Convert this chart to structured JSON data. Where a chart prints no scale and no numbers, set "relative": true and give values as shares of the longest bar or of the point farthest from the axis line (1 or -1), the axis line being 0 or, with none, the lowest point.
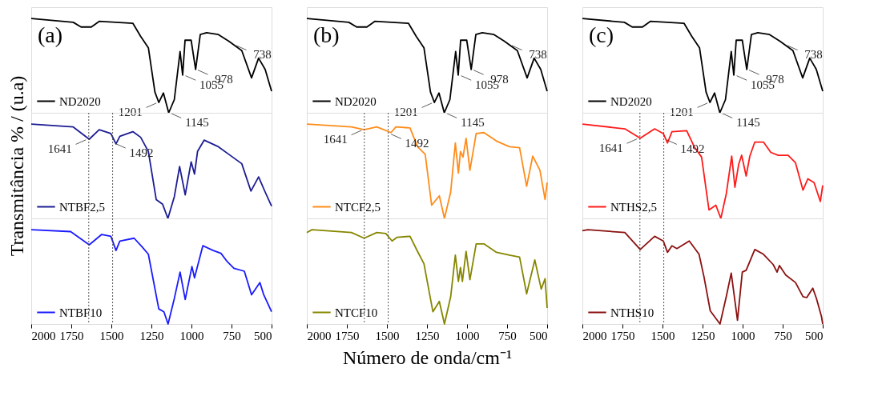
{
  "chart_data": [
    {
      "type": "line",
      "relative": true,
      "xlim": [
        2000,
        500
      ],
      "xticks": [
        2000,
        1750,
        1500,
        1250,
        1000,
        750,
        500
      ],
      "tick_labels": false,
      "legend": "bottom left",
      "line_style": "solid",
      "marker": "none",
      "grid": false,
      "series": [
        {
          "name": "ND2020",
          "color": "#000000",
          "x": [
            2000,
            1738,
            1689,
            1625,
            1576,
            1366,
            1317,
            1269,
            1228,
            1204,
            1175,
            1142,
            1107,
            1071,
            1055,
            1040,
            1002,
            974,
            945,
            905,
            832,
            767,
            686,
            625,
            581,
            540,
            500
          ],
          "values": [
            1.0,
            0.96,
            0.91,
            0.91,
            0.97,
            0.95,
            0.81,
            0.69,
            0.22,
            0.11,
            0.21,
            0,
            0.14,
            0.65,
            0.4,
            0.77,
            0.77,
            0.46,
            0.83,
            0.85,
            0.83,
            0.76,
            0.66,
            0.37,
            0.58,
            0.46,
            0.23
          ]
        }
      ],
      "annotations": [
        "(a)",
        {
          "text": "1201",
          "x": 1201,
          "y": 0.11
        },
        {
          "text": "1145",
          "x": 1145,
          "y": 0
        },
        {
          "text": "1055",
          "x": 1055,
          "y": 0.4
        },
        {
          "text": "978",
          "x": 978,
          "y": 0.46
        },
        {
          "text": "738",
          "x": 738,
          "y": 0.72
        }
      ]
    },
    {
      "type": "line",
      "relative": true,
      "xlim": [
        2000,
        500
      ],
      "xticks": [
        2000,
        1750,
        1500,
        1250,
        1000,
        750,
        500
      ],
      "tick_labels": false,
      "legend": "bottom left",
      "line_style": "solid",
      "marker": "none",
      "grid": false,
      "series": [
        {
          "name": "ND2020",
          "color": "#000000",
          "x": [
            2000,
            1738,
            1689,
            1625,
            1576,
            1366,
            1317,
            1269,
            1228,
            1204,
            1175,
            1142,
            1107,
            1071,
            1055,
            1040,
            1002,
            974,
            945,
            905,
            832,
            767,
            686,
            625,
            581,
            540,
            500
          ],
          "values": [
            1.0,
            0.96,
            0.91,
            0.91,
            0.97,
            0.95,
            0.81,
            0.69,
            0.22,
            0.11,
            0.21,
            0,
            0.14,
            0.65,
            0.4,
            0.77,
            0.77,
            0.46,
            0.83,
            0.85,
            0.83,
            0.76,
            0.66,
            0.37,
            0.58,
            0.46,
            0.23
          ]
        }
      ],
      "annotations": [
        "(b)",
        {
          "text": "1201",
          "x": 1201,
          "y": 0.11
        },
        {
          "text": "1145",
          "x": 1145,
          "y": 0
        },
        {
          "text": "1055",
          "x": 1055,
          "y": 0.4
        },
        {
          "text": "978",
          "x": 978,
          "y": 0.46
        },
        {
          "text": "738",
          "x": 738,
          "y": 0.72
        }
      ]
    },
    {
      "type": "line",
      "relative": true,
      "xlim": [
        2000,
        500
      ],
      "xticks": [
        2000,
        1750,
        1500,
        1250,
        1000,
        750,
        500
      ],
      "tick_labels": false,
      "legend": "bottom left",
      "line_style": "solid",
      "marker": "none",
      "grid": false,
      "series": [
        {
          "name": "ND2020",
          "color": "#000000",
          "x": [
            2000,
            1738,
            1689,
            1625,
            1576,
            1366,
            1317,
            1269,
            1228,
            1204,
            1175,
            1142,
            1107,
            1071,
            1055,
            1040,
            1002,
            974,
            945,
            905,
            832,
            767,
            686,
            625,
            581,
            540,
            500
          ],
          "values": [
            1.0,
            0.96,
            0.91,
            0.91,
            0.97,
            0.95,
            0.81,
            0.69,
            0.22,
            0.11,
            0.21,
            0,
            0.14,
            0.65,
            0.4,
            0.77,
            0.77,
            0.46,
            0.83,
            0.85,
            0.83,
            0.76,
            0.66,
            0.37,
            0.58,
            0.46,
            0.23
          ]
        }
      ],
      "annotations": [
        "(c)",
        {
          "text": "1201",
          "x": 1201,
          "y": 0.11
        },
        {
          "text": "1145",
          "x": 1145,
          "y": 0
        },
        {
          "text": "1055",
          "x": 1055,
          "y": 0.4
        },
        {
          "text": "978",
          "x": 978,
          "y": 0.46
        },
        {
          "text": "738",
          "x": 738,
          "y": 0.72
        }
      ]
    },
    {
      "type": "line",
      "relative": true,
      "xlim": [
        2000,
        500
      ],
      "xticks": [
        2000,
        1750,
        1500,
        1250,
        1000,
        750,
        500
      ],
      "tick_labels": false,
      "legend": "bottom left",
      "line_style": "solid",
      "marker": "none",
      "grid": false,
      "ylabel": "Transmitância % / (u.a)",
      "series": [
        {
          "name": "NTBF2,5",
          "color": "#1c1c94",
          "x": [
            2000,
            1738,
            1638,
            1576,
            1503,
            1471,
            1447,
            1366,
            1317,
            1269,
            1220,
            1180,
            1147,
            1107,
            1074,
            1039,
            1002,
            981,
            962,
            921,
            832,
            767,
            686,
            629,
            581,
            540,
            500
          ],
          "values": [
            1.0,
            0.97,
            0.84,
            0.94,
            0.9,
            0.79,
            0.87,
            0.92,
            0.86,
            0.71,
            0.2,
            0.15,
            0,
            0.23,
            0.55,
            0.25,
            0.6,
            0.47,
            0.71,
            0.83,
            0.76,
            0.68,
            0.58,
            0.29,
            0.44,
            0.28,
            0.13
          ]
        }
      ],
      "ref_lines": [
        {
          "axis": "x",
          "value": 1641,
          "line_style": "dotted",
          "color": "#444444"
        },
        {
          "axis": "x",
          "value": 1492,
          "line_style": "dotted",
          "color": "#444444"
        }
      ],
      "annotations": [
        {
          "text": "1641",
          "x": 1641,
          "y": 0.84
        },
        {
          "text": "1492",
          "x": 1492,
          "y": 0.8
        }
      ]
    },
    {
      "type": "line",
      "relative": true,
      "xlim": [
        2000,
        500
      ],
      "xticks": [
        2000,
        1750,
        1500,
        1250,
        1000,
        750,
        500
      ],
      "tick_labels": false,
      "legend": "bottom left",
      "line_style": "solid",
      "marker": "none",
      "grid": false,
      "series": [
        {
          "name": "NTCF2,5",
          "color": "#ff8c1a",
          "x": [
            2000,
            1722,
            1642,
            1563,
            1475,
            1444,
            1356,
            1309,
            1261,
            1221,
            1173,
            1141,
            1102,
            1073,
            1054,
            1041,
            1025,
            1006,
            982,
            943,
            895,
            816,
            736,
            672,
            628,
            590,
            545,
            513,
            500
          ],
          "values": [
            1.0,
            0.97,
            0.94,
            0.97,
            0.91,
            0.97,
            0.96,
            0.76,
            0.68,
            0.14,
            0.24,
            0,
            0.28,
            0.8,
            0.48,
            0.71,
            0.65,
            0.85,
            0.51,
            0.9,
            0.91,
            0.82,
            0.76,
            0.75,
            0.34,
            0.66,
            0.51,
            0.2,
            0.38
          ]
        }
      ],
      "ref_lines": [
        {
          "axis": "x",
          "value": 1641,
          "line_style": "dotted",
          "color": "#444444"
        },
        {
          "axis": "x",
          "value": 1492,
          "line_style": "dotted",
          "color": "#444444"
        }
      ],
      "annotations": [
        {
          "text": "1641",
          "x": 1641,
          "y": 0.94
        },
        {
          "text": "1492",
          "x": 1492,
          "y": 0.9
        }
      ]
    },
    {
      "type": "line",
      "relative": true,
      "xlim": [
        2000,
        500
      ],
      "xticks": [
        2000,
        1750,
        1500,
        1250,
        1000,
        750,
        500
      ],
      "tick_labels": false,
      "legend": "bottom left",
      "line_style": "solid",
      "marker": "none",
      "grid": false,
      "series": [
        {
          "name": "NTHS2,5",
          "color": "#ff1a1a",
          "x": [
            2000,
            1735,
            1639,
            1549,
            1495,
            1469,
            1441,
            1349,
            1302,
            1256,
            1210,
            1167,
            1136,
            1102,
            1068,
            1048,
            1025,
            1006,
            978,
            955,
            924,
            870,
            824,
            778,
            716,
            670,
            623,
            593,
            554,
            515,
            500
          ],
          "values": [
            1.0,
            0.95,
            0.85,
            0.95,
            0.9,
            0.8,
            0.92,
            0.93,
            0.76,
            0.65,
            0.09,
            0.14,
            0,
            0.26,
            0.66,
            0.33,
            0.57,
            0.67,
            0.45,
            0.66,
            0.81,
            0.81,
            0.7,
            0.67,
            0.67,
            0.59,
            0.3,
            0.42,
            0.38,
            0.18,
            0.35
          ]
        }
      ],
      "ref_lines": [
        {
          "axis": "x",
          "value": 1641,
          "line_style": "dotted",
          "color": "#444444"
        },
        {
          "axis": "x",
          "value": 1492,
          "line_style": "dotted",
          "color": "#444444"
        }
      ],
      "annotations": [
        {
          "text": "1641",
          "x": 1641,
          "y": 0.85
        },
        {
          "text": "1492",
          "x": 1492,
          "y": 0.84
        }
      ]
    },
    {
      "type": "line",
      "relative": true,
      "xlim": [
        2000,
        500
      ],
      "xticks": [
        2000,
        1750,
        1500,
        1250,
        1000,
        750,
        500
      ],
      "tick_labels": "x",
      "legend": "bottom left",
      "line_style": "solid",
      "marker": "none",
      "grid": false,
      "series": [
        {
          "name": "NTBF10",
          "color": "#1a1aff",
          "x": [
            2000,
            1754,
            1638,
            1560,
            1503,
            1471,
            1447,
            1358,
            1309,
            1269,
            1204,
            1172,
            1146,
            1107,
            1071,
            1039,
            997,
            981,
            929,
            864,
            816,
            776,
            735,
            670,
            625,
            573,
            549,
            500
          ],
          "values": [
            1.0,
            0.98,
            0.84,
            0.95,
            0.93,
            0.78,
            0.88,
            0.91,
            0.82,
            0.74,
            0.16,
            0.13,
            0,
            0.27,
            0.55,
            0.26,
            0.61,
            0.49,
            0.83,
            0.78,
            0.75,
            0.66,
            0.59,
            0.56,
            0.31,
            0.44,
            0.31,
            0.13
          ]
        }
      ],
      "ref_lines": [
        {
          "axis": "x",
          "value": 1641,
          "line_style": "dotted",
          "color": "#444444"
        },
        {
          "axis": "x",
          "value": 1492,
          "line_style": "dotted",
          "color": "#444444"
        }
      ]
    },
    {
      "type": "line",
      "relative": true,
      "xlim": [
        2000,
        500
      ],
      "xticks": [
        2000,
        1750,
        1500,
        1250,
        1000,
        750,
        500
      ],
      "tick_labels": "x",
      "legend": "bottom left",
      "line_style": "solid",
      "marker": "none",
      "grid": false,
      "xlabel": "Número de onda/cm⁻¹",
      "series": [
        {
          "name": "NTCF10",
          "color": "#868600",
          "x": [
            2000,
            1968,
            1722,
            1642,
            1563,
            1507,
            1468,
            1436,
            1356,
            1309,
            1269,
            1213,
            1173,
            1141,
            1102,
            1073,
            1054,
            1041,
            1029,
            1006,
            982,
            943,
            895,
            816,
            736,
            672,
            628,
            577,
            537,
            513,
            500
          ],
          "values": [
            0.97,
            1.0,
            0.97,
            0.91,
            0.97,
            0.96,
            0.88,
            0.92,
            0.93,
            0.77,
            0.64,
            0.13,
            0.24,
            0,
            0.29,
            0.73,
            0.45,
            0.6,
            0.45,
            0.77,
            0.47,
            0.85,
            0.85,
            0.76,
            0.73,
            0.71,
            0.32,
            0.68,
            0.37,
            0.48,
            0.17
          ]
        }
      ],
      "ref_lines": [
        {
          "axis": "x",
          "value": 1641,
          "line_style": "dotted",
          "color": "#444444"
        },
        {
          "axis": "x",
          "value": 1492,
          "line_style": "dotted",
          "color": "#444444"
        }
      ]
    },
    {
      "type": "line",
      "relative": true,
      "xlim": [
        2000,
        500
      ],
      "xticks": [
        2000,
        1750,
        1500,
        1250,
        1000,
        750,
        500
      ],
      "tick_labels": "x",
      "legend": "bottom left",
      "line_style": "solid",
      "marker": "none",
      "grid": false,
      "series": [
        {
          "name": "NTHS10",
          "color": "#8b1010",
          "x": [
            2000,
            1966,
            1735,
            1639,
            1549,
            1495,
            1469,
            1441,
            1410,
            1333,
            1272,
            1241,
            1202,
            1141,
            1102,
            1071,
            1032,
            1002,
            978,
            924,
            870,
            809,
            785,
            770,
            731,
            670,
            623,
            600,
            562,
            539,
            508,
            500
          ],
          "values": [
            0.99,
            1.0,
            0.97,
            0.79,
            0.93,
            0.88,
            0.76,
            0.83,
            0.8,
            0.88,
            0.74,
            0.5,
            0.14,
            0,
            0.29,
            0.54,
            0.04,
            0.55,
            0.57,
            0.79,
            0.74,
            0.63,
            0.55,
            0.62,
            0.52,
            0.44,
            0.29,
            0.28,
            0.38,
            0.27,
            0.08,
            0
          ]
        }
      ],
      "ref_lines": [
        {
          "axis": "x",
          "value": 1641,
          "line_style": "dotted",
          "color": "#444444"
        },
        {
          "axis": "x",
          "value": 1492,
          "line_style": "dotted",
          "color": "#444444"
        }
      ]
    }
  ]
}
